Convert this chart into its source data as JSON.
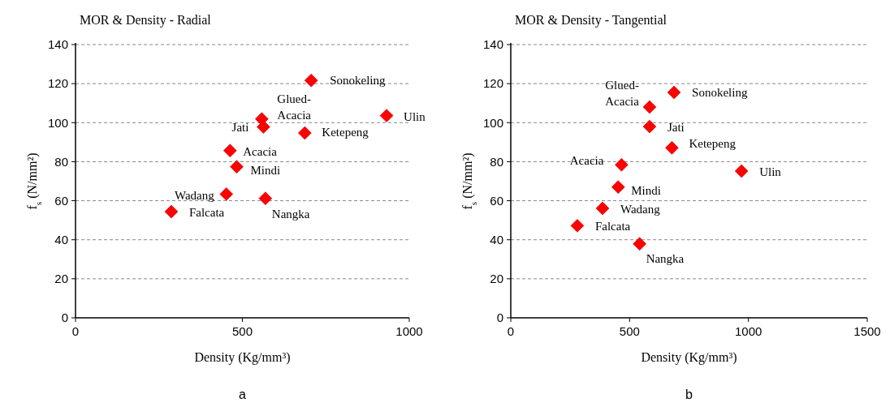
{
  "chart_data": [
    {
      "type": "scatter",
      "title": "MOR & Density - Radial",
      "xlabel": "Density (Kg/mm³)",
      "ylabel": "f$_{s}$ (N/mm²)",
      "xlim": [
        0,
        1000
      ],
      "xticks": [
        0,
        500,
        1000
      ],
      "ylim": [
        0,
        140
      ],
      "yticks": [
        0,
        20,
        40,
        60,
        80,
        100,
        120,
        140
      ],
      "grid": "y",
      "marker": "diamond",
      "series": [
        {
          "color": "#ff0000",
          "x": [
            706,
            932,
            558,
            563,
            687,
            463,
            483,
            452,
            569,
            287
          ],
          "values": [
            121.6,
            103.6,
            101.9,
            97.8,
            94.7,
            85.7,
            77.4,
            63.4,
            61.2,
            54.4
          ]
        }
      ],
      "annotations": [
        {
          "text": "Sonokeling",
          "x": 706,
          "y": 121.6
        },
        {
          "text": "Ulin",
          "x": 932,
          "y": 103.6
        },
        {
          "text": "Glued-Acacia",
          "x": 558,
          "y": 101.9
        },
        {
          "text": "Jati",
          "x": 563,
          "y": 97.8
        },
        {
          "text": "Ketepeng",
          "x": 687,
          "y": 94.7
        },
        {
          "text": "Acacia",
          "x": 463,
          "y": 85.7
        },
        {
          "text": "Mindi",
          "x": 483,
          "y": 77.4
        },
        {
          "text": "Wadang",
          "x": 452,
          "y": 63.4
        },
        {
          "text": "Nangka",
          "x": 569,
          "y": 61.2
        },
        {
          "text": "Falcata",
          "x": 287,
          "y": 54.4
        },
        "a"
      ]
    },
    {
      "type": "scatter",
      "title": "MOR & Density - Tangential",
      "xlabel": "Density (Kg/mm³)",
      "ylabel": "f$_{s}$ (N/mm²)",
      "xlim": [
        0,
        1500
      ],
      "xticks": [
        0,
        500,
        1000,
        1500
      ],
      "ylim": [
        0,
        140
      ],
      "yticks": [
        0,
        20,
        40,
        60,
        80,
        100,
        120,
        140
      ],
      "grid": "y",
      "marker": "diamond",
      "series": [
        {
          "color": "#ff0000",
          "x": [
            687,
            584,
            584,
            678,
            466,
            971,
            452,
            386,
            280,
            542
          ],
          "values": [
            115.5,
            108,
            98,
            87.1,
            78.4,
            75.2,
            67,
            56.1,
            47.2,
            37.9
          ]
        }
      ],
      "annotations": [
        {
          "text": "Sonokeling",
          "x": 687,
          "y": 115.5
        },
        {
          "text": "Glued-Acacia",
          "x": 584,
          "y": 108
        },
        {
          "text": "Jati",
          "x": 584,
          "y": 98
        },
        {
          "text": "Ketepeng",
          "x": 678,
          "y": 87.1
        },
        {
          "text": "Acacia",
          "x": 466,
          "y": 78.4
        },
        {
          "text": "Ulin",
          "x": 971,
          "y": 75.2
        },
        {
          "text": "Mindi",
          "x": 452,
          "y": 67
        },
        {
          "text": "Wadang",
          "x": 386,
          "y": 56.1
        },
        {
          "text": "Falcata",
          "x": 280,
          "y": 47.2
        },
        {
          "text": "Nangka",
          "x": 542,
          "y": 37.9
        },
        "b"
      ]
    }
  ]
}
